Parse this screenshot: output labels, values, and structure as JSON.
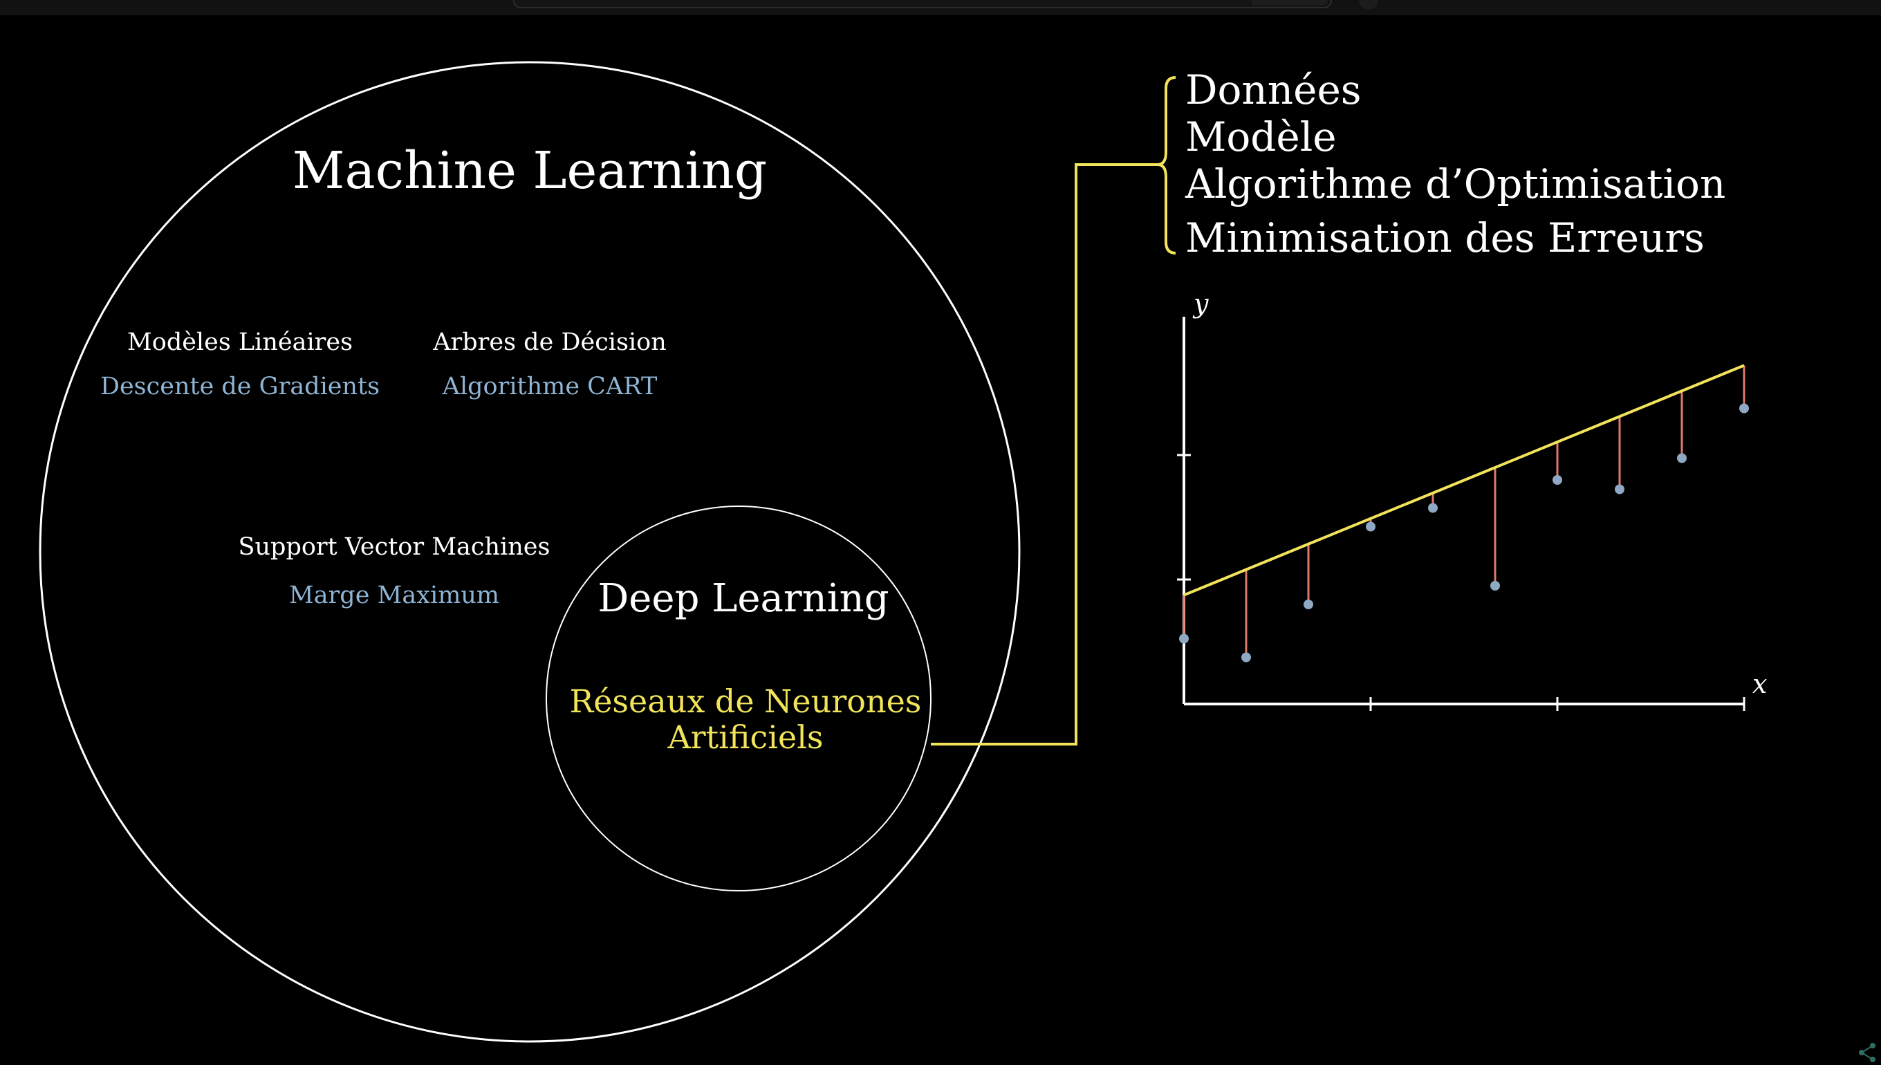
{
  "outer_circle": {
    "title": "Machine Learning",
    "groups": [
      {
        "name": "Modèles Linéaires",
        "method": "Descente de Gradients"
      },
      {
        "name": "Arbres de Décision",
        "method": "Algorithme CART"
      },
      {
        "name": "Support Vector Machines",
        "method": "Marge Maximum"
      }
    ]
  },
  "inner_circle": {
    "title": "Deep Learning",
    "subtitle_line1": "Réseaux de Neurones",
    "subtitle_line2": "Artificiels"
  },
  "components": [
    "Données",
    "Modèle",
    "Algorithme d’Optimisation",
    "Minimisation des Erreurs"
  ],
  "colors": {
    "background": "#000000",
    "primary_text": "#ffffff",
    "method_text": "#8fb4d4",
    "accent_yellow": "#f2e45a",
    "residual_line": "#e07a68",
    "data_point": "#8fa9c4"
  },
  "chart_data": {
    "type": "scatter",
    "xlabel": "x",
    "ylabel": "y",
    "xlim": [
      0,
      9
    ],
    "ylim": [
      0,
      6
    ],
    "x_ticks": [
      3,
      6,
      9
    ],
    "y_ticks": [
      2,
      4
    ],
    "series": [
      {
        "points": [
          [
            0,
            1.05
          ],
          [
            1,
            0.75
          ],
          [
            2,
            1.6
          ],
          [
            3,
            2.85
          ],
          [
            4,
            3.15
          ],
          [
            5,
            1.9
          ],
          [
            6,
            3.6
          ],
          [
            7,
            3.45
          ],
          [
            8,
            3.95
          ],
          [
            9,
            4.75
          ]
        ]
      }
    ],
    "fit_line": {
      "intercept": 1.75,
      "slope": 0.41
    },
    "residuals_shown": true,
    "grid": false
  }
}
